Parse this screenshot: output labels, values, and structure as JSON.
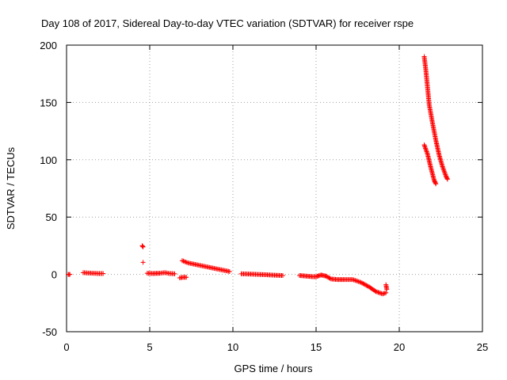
{
  "chart_data": {
    "type": "scatter",
    "title": "Day 108 of 2017, Sidereal Day-to-day VTEC variation (SDTVAR) for receiver rspe",
    "xlabel": "GPS time / hours",
    "ylabel": "SDTVAR / TECUs",
    "xlim": [
      0,
      25
    ],
    "ylim": [
      -50,
      200
    ],
    "xticks": [
      0,
      5,
      10,
      15,
      20,
      25
    ],
    "yticks": [
      -50,
      0,
      50,
      100,
      150,
      200
    ],
    "grid": true,
    "marker": "+",
    "color": "#ff0000",
    "series": [
      {
        "name": "SDTVAR",
        "segments": [
          [
            [
              0.1,
              0
            ],
            [
              0.2,
              0
            ]
          ],
          [
            [
              1.0,
              1.5
            ],
            [
              1.3,
              1.2
            ],
            [
              1.6,
              1
            ],
            [
              1.9,
              0.8
            ],
            [
              2.2,
              0.8
            ]
          ],
          [
            [
              4.55,
              25
            ],
            [
              4.6,
              24
            ]
          ],
          [
            [
              4.6,
              10.5
            ]
          ],
          [
            [
              4.85,
              1
            ],
            [
              5.2,
              0.8
            ],
            [
              5.6,
              1
            ],
            [
              5.9,
              1.5
            ],
            [
              6.2,
              0.8
            ],
            [
              6.5,
              0.5
            ]
          ],
          [
            [
              6.8,
              -3
            ],
            [
              7.0,
              -2.5
            ],
            [
              7.2,
              -2.5
            ]
          ],
          [
            [
              6.95,
              12
            ],
            [
              7.3,
              10
            ],
            [
              7.8,
              8.5
            ],
            [
              8.3,
              7
            ],
            [
              8.8,
              5.5
            ],
            [
              9.3,
              4
            ],
            [
              9.8,
              2.5
            ]
          ],
          [
            [
              10.5,
              0.5
            ],
            [
              11.0,
              0.3
            ],
            [
              11.5,
              0
            ],
            [
              12.0,
              -0.3
            ],
            [
              12.5,
              -0.7
            ],
            [
              13.0,
              -1
            ]
          ],
          [
            [
              14.0,
              -1
            ],
            [
              14.4,
              -1.5
            ],
            [
              14.8,
              -2
            ],
            [
              15.0,
              -2
            ],
            [
              15.3,
              -0.5
            ],
            [
              15.6,
              -1.5
            ],
            [
              15.9,
              -4
            ],
            [
              16.3,
              -4.5
            ],
            [
              16.7,
              -4.5
            ],
            [
              17.2,
              -4.5
            ],
            [
              17.7,
              -7
            ],
            [
              18.2,
              -11
            ],
            [
              18.6,
              -15
            ],
            [
              19.0,
              -17
            ],
            [
              19.2,
              -16
            ]
          ],
          [
            [
              19.2,
              -9
            ],
            [
              19.25,
              -13
            ]
          ],
          [
            [
              21.5,
              113
            ],
            [
              21.7,
              105
            ],
            [
              21.9,
              93
            ],
            [
              22.1,
              82
            ],
            [
              22.2,
              79
            ]
          ],
          [
            [
              21.5,
              190
            ],
            [
              21.6,
              178
            ],
            [
              21.7,
              163
            ],
            [
              21.8,
              148
            ],
            [
              22.0,
              132
            ],
            [
              22.2,
              117
            ],
            [
              22.4,
              104
            ],
            [
              22.6,
              94
            ],
            [
              22.8,
              86
            ],
            [
              22.9,
              83
            ]
          ]
        ]
      }
    ]
  }
}
